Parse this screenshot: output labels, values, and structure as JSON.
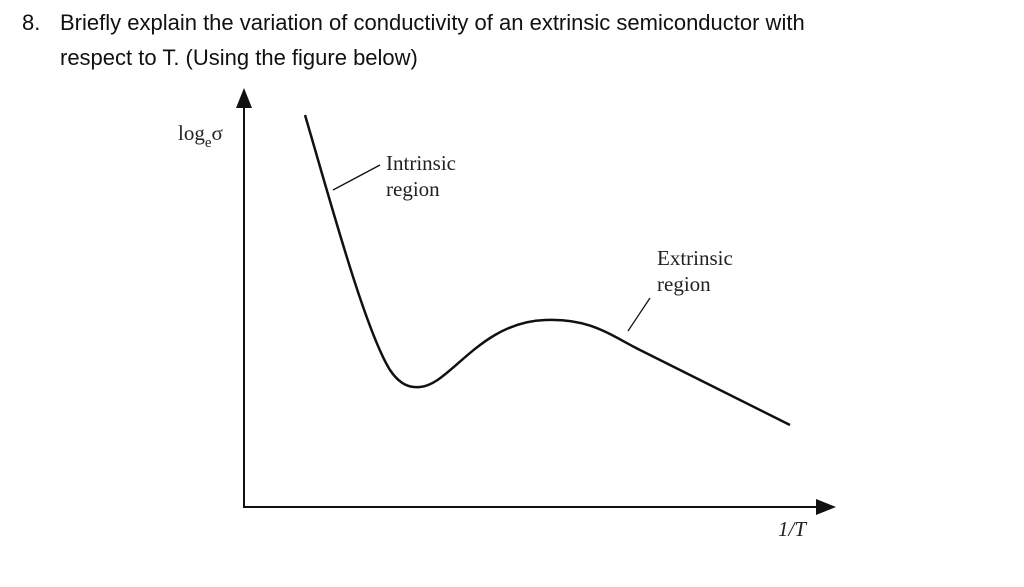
{
  "question": {
    "number": "8.",
    "lines": [
      "Briefly explain the variation of conductivity of an extrinsic semiconductor with",
      "respect to T. (Using the figure below)"
    ]
  },
  "figure": {
    "y_label": {
      "base": "log",
      "subscript": "e",
      "symbol": "σ"
    },
    "x_label": "1/T",
    "intrinsic_label": [
      "Intrinsic",
      "region"
    ],
    "extrinsic_label": [
      "Extrinsic",
      "region"
    ]
  }
}
